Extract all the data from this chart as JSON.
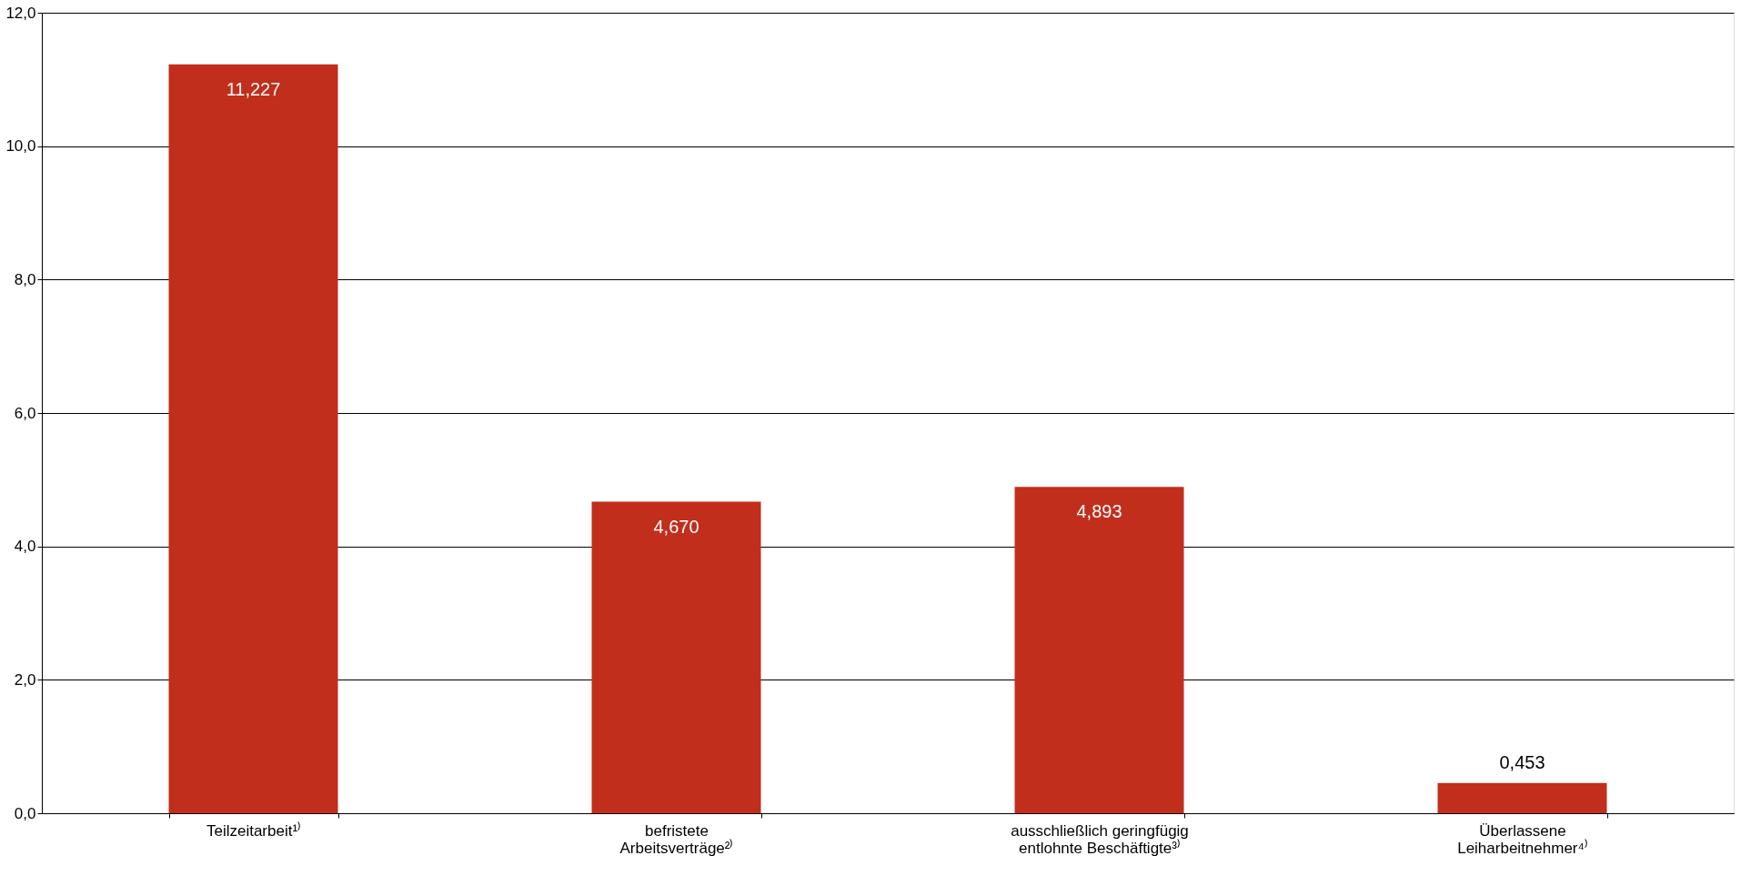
{
  "chart_data": {
    "type": "bar",
    "categories": [
      "Teilzeitarbeit¹⁾",
      "befristete\nArbeitsverträge²⁾",
      "ausschließlich geringfügig\nentlohnte Beschäftigte³⁾",
      "Überlassene\nLeiharbeitnehmer⁴⁾"
    ],
    "values": [
      11.227,
      4.67,
      4.893,
      0.453
    ],
    "value_labels": [
      "11,227",
      "4,670",
      "4,893",
      "0,453"
    ],
    "color": "#c12e1c",
    "ylim": [
      0,
      12
    ],
    "yticks": [
      {
        "value": 0,
        "label": "0,0"
      },
      {
        "value": 2,
        "label": "2,0"
      },
      {
        "value": 4,
        "label": "4,0"
      },
      {
        "value": 6,
        "label": "6,0"
      },
      {
        "value": 8,
        "label": "8,0"
      },
      {
        "value": 10,
        "label": "10,0"
      },
      {
        "value": 12,
        "label": "12,0"
      }
    ],
    "grid": "y"
  }
}
